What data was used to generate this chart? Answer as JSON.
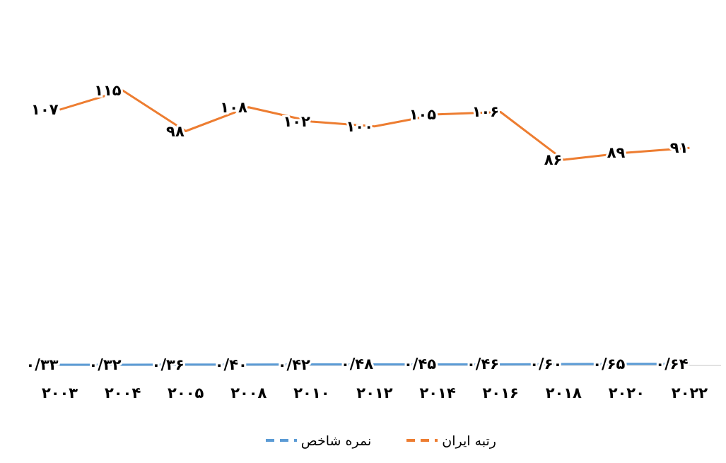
{
  "chart_data": {
    "type": "line",
    "categories": [
      "۲۰۰۳",
      "۲۰۰۴",
      "۲۰۰۵",
      "۲۰۰۸",
      "۲۰۱۰",
      "۲۰۱۲",
      "۲۰۱۴",
      "۲۰۱۶",
      "۲۰۱۸",
      "۲۰۲۰",
      "۲۰۲۲"
    ],
    "series": [
      {
        "name": "رتبه ایران",
        "color": "#ed7d31",
        "values": [
          107,
          115,
          98,
          108,
          102,
          100,
          105,
          106,
          86,
          89,
          91
        ],
        "value_labels": [
          "۱۰۷",
          "۱۱۵",
          "۹۸",
          "۱۰۸",
          "۱۰۲",
          "۱۰۰",
          "۱۰۵",
          "۱۰۶",
          "۸۶",
          "۸۹",
          "۹۱"
        ]
      },
      {
        "name": "نمره شاخص",
        "color": "#5b9bd5",
        "values": [
          0.33,
          0.32,
          0.36,
          0.4,
          0.42,
          0.48,
          0.45,
          0.46,
          0.6,
          0.65,
          0.64
        ],
        "value_labels": [
          "۰/۳۳",
          "۰/۳۲",
          "۰/۳۶",
          "۰/۴۰",
          "۰/۴۲",
          "۰/۴۸",
          "۰/۴۵",
          "۰/۴۶",
          "۰/۶۰",
          "۰/۶۵",
          "۰/۶۴"
        ]
      }
    ],
    "legend": "bottom",
    "marker": "none",
    "line_style": "solid"
  }
}
